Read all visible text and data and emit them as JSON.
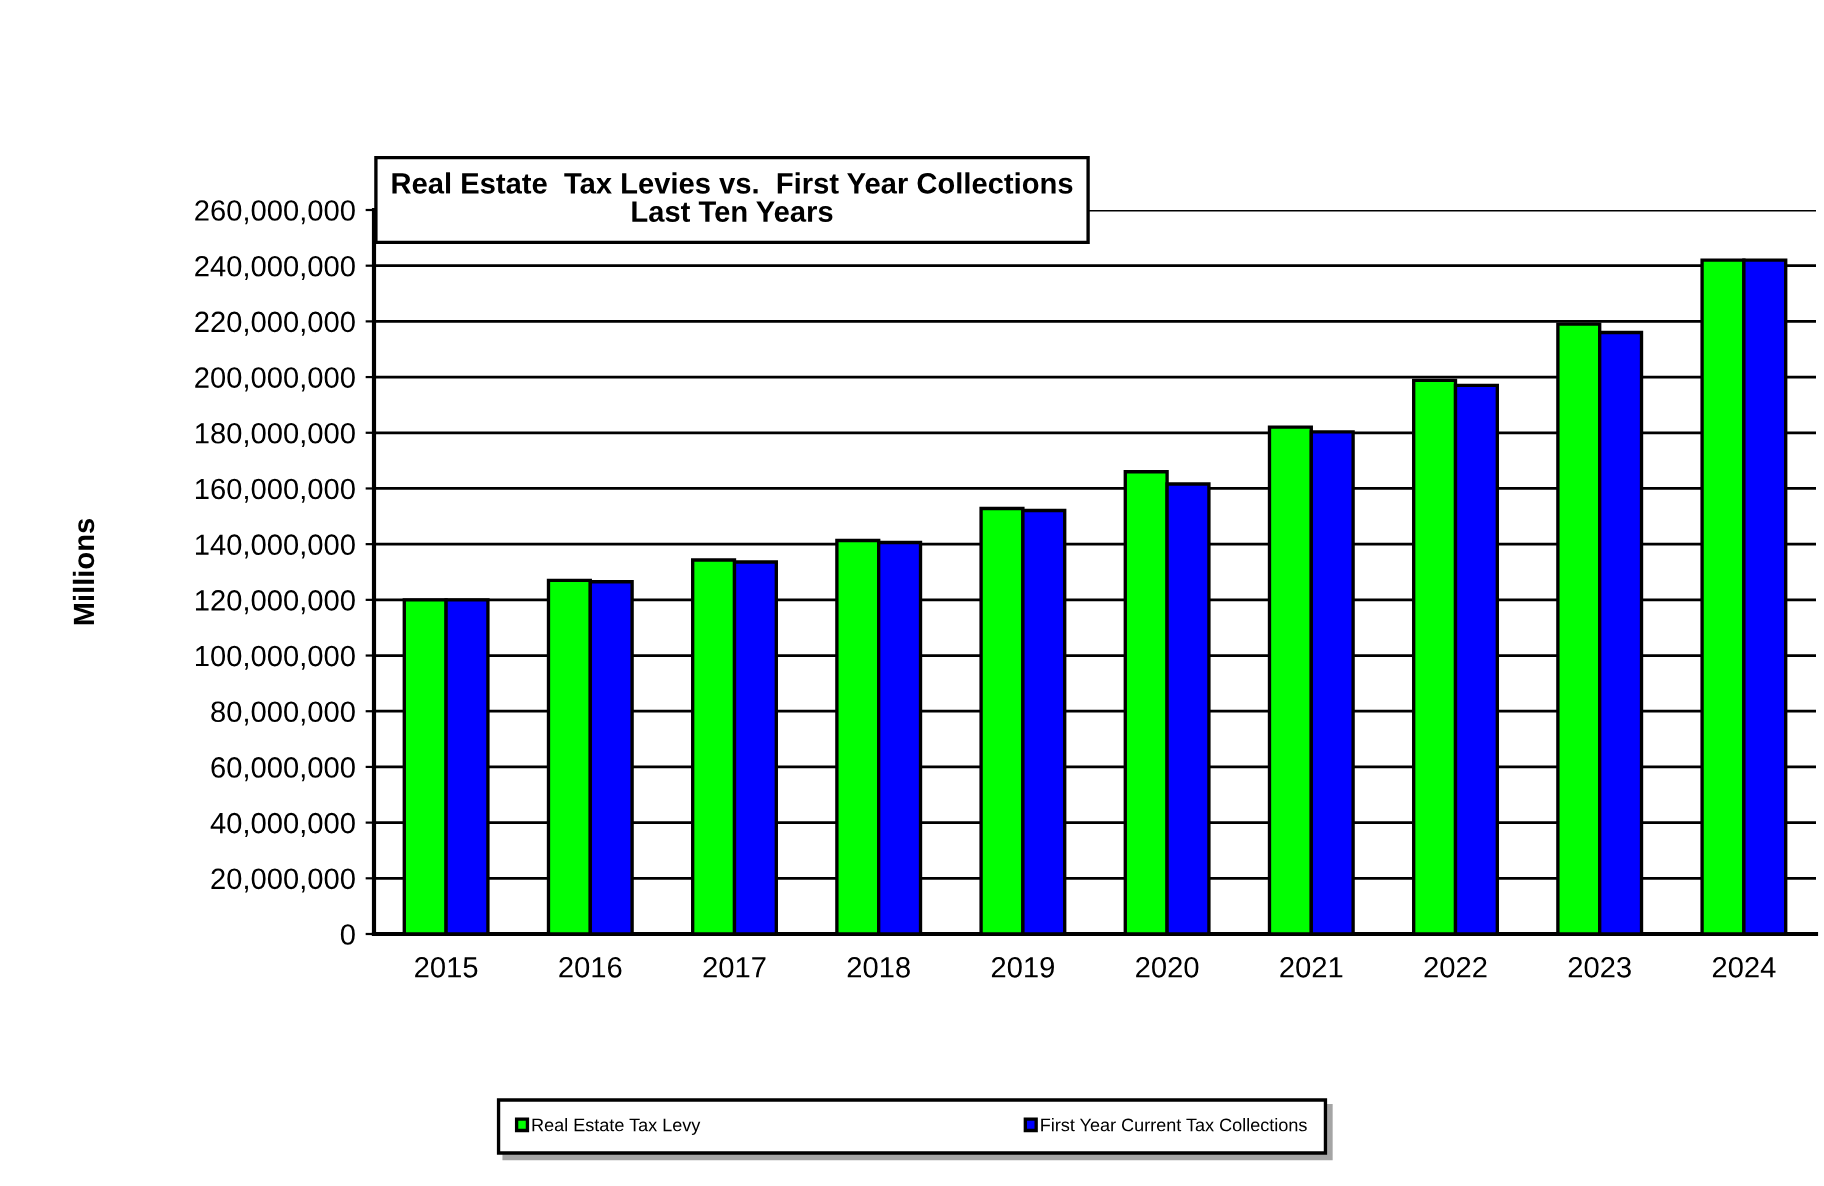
{
  "chart_data": {
    "type": "bar",
    "title": "Real Estate  Tax Levies vs.  First Year Collections\nLast Ten Years",
    "ylabel": "Millions",
    "categories": [
      "2015",
      "2016",
      "2017",
      "2018",
      "2019",
      "2020",
      "2021",
      "2022",
      "2023",
      "2024"
    ],
    "series": [
      {
        "name": "Real Estate Tax Levy",
        "color": "#00ff00",
        "values": [
          120000000,
          127000000,
          134300000,
          141300000,
          152800000,
          166000000,
          182000000,
          198800000,
          219000000,
          242000000
        ]
      },
      {
        "name": "First Year Current Tax Collections",
        "color": "#0000ff",
        "values": [
          120000000,
          126500000,
          133600000,
          140600000,
          152100000,
          161600000,
          180300000,
          197000000,
          216000000,
          242000000
        ]
      }
    ],
    "ylim": [
      0,
      260000000
    ],
    "yticks": [
      {
        "value": 0,
        "label": "0"
      },
      {
        "value": 20000000,
        "label": "20,000,000"
      },
      {
        "value": 40000000,
        "label": "40,000,000"
      },
      {
        "value": 60000000,
        "label": "60,000,000"
      },
      {
        "value": 80000000,
        "label": "80,000,000"
      },
      {
        "value": 100000000,
        "label": "100,000,000"
      },
      {
        "value": 120000000,
        "label": "120,000,000"
      },
      {
        "value": 140000000,
        "label": "140,000,000"
      },
      {
        "value": 160000000,
        "label": "160,000,000"
      },
      {
        "value": 180000000,
        "label": "180,000,000"
      },
      {
        "value": 200000000,
        "label": "200,000,000"
      },
      {
        "value": 220000000,
        "label": "220,000,000"
      },
      {
        "value": 240000000,
        "label": "240,000,000"
      },
      {
        "value": 260000000,
        "label": "260,000,000"
      }
    ],
    "grid": "y",
    "legend": "bottom"
  }
}
